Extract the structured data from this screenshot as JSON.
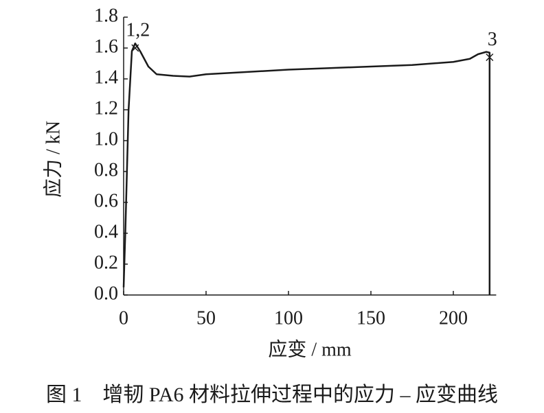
{
  "chart_data": {
    "type": "line",
    "xlabel": "应变 / mm",
    "ylabel": "应力 / kN",
    "caption": "图 1　增韧 PA6 材料拉伸过程中的应力 – 应变曲线",
    "xlim": [
      0,
      226
    ],
    "ylim": [
      0,
      1.8
    ],
    "xticks": [
      0,
      50,
      100,
      150,
      200
    ],
    "yticks": [
      {
        "value": 0,
        "label": "0.0"
      },
      0.2,
      0.4,
      0.6,
      0.8,
      {
        "value": 1,
        "label": "1.0"
      },
      1.2,
      1.4,
      1.6,
      1.8
    ],
    "series": [
      {
        "color": "#1a1a1a",
        "x": [
          0,
          1,
          3,
          5,
          7,
          10,
          15,
          20,
          30,
          40,
          50,
          75,
          100,
          125,
          150,
          175,
          200,
          210,
          215,
          220,
          222,
          222
        ],
        "values": [
          0.05,
          0.4,
          1.2,
          1.58,
          1.63,
          1.58,
          1.48,
          1.43,
          1.42,
          1.415,
          1.43,
          1.445,
          1.46,
          1.47,
          1.48,
          1.49,
          1.51,
          1.53,
          1.56,
          1.575,
          1.57,
          0
        ]
      }
    ],
    "markers": [
      {
        "x": 7,
        "y": 1.6,
        "label": "1,2"
      },
      {
        "x": 222,
        "y": 1.54,
        "label": "3"
      }
    ]
  }
}
